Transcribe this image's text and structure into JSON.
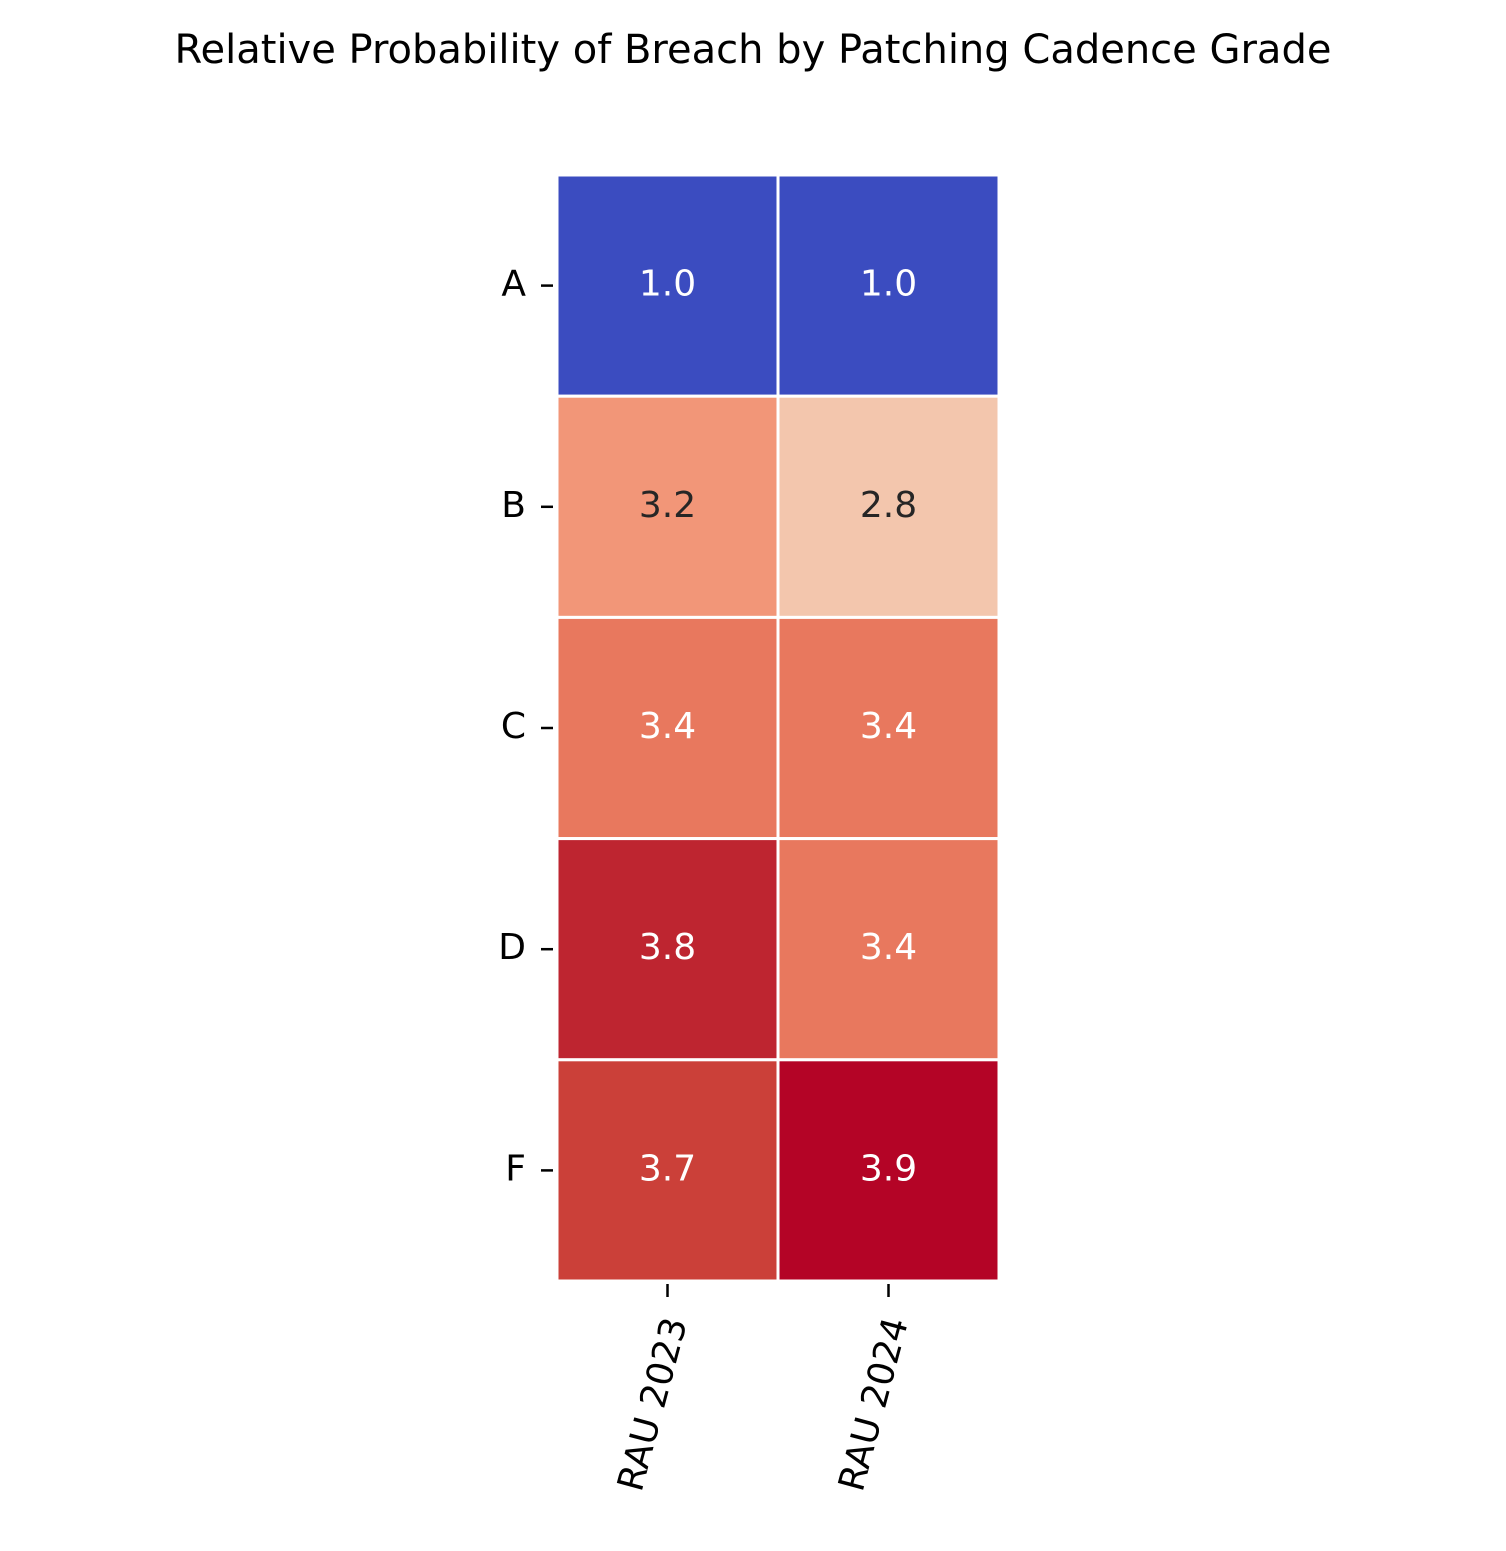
{
  "chart_data": {
    "type": "heatmap",
    "title": "Relative Probability of Breach by Patching Cadence Grade",
    "rows": [
      "A",
      "B",
      "C",
      "D",
      "F"
    ],
    "columns": [
      "RAU 2023",
      "RAU 2024"
    ],
    "values": [
      [
        1.0,
        1.0
      ],
      [
        3.2,
        2.8
      ],
      [
        3.4,
        3.4
      ],
      [
        3.8,
        3.4
      ],
      [
        3.7,
        3.9
      ]
    ],
    "value_labels": [
      [
        "1.0",
        "1.0"
      ],
      [
        "3.2",
        "2.8"
      ],
      [
        "3.4",
        "3.4"
      ],
      [
        "3.8",
        "3.4"
      ],
      [
        "3.7",
        "3.9"
      ]
    ],
    "colors": [
      [
        "#3b4cc0",
        "#3b4cc0"
      ],
      [
        "#f29678",
        "#f3c6ad"
      ],
      [
        "#e8785e",
        "#e8785e"
      ],
      [
        "#be2530",
        "#e8785e"
      ],
      [
        "#cb4039",
        "#b40426"
      ]
    ]
  }
}
